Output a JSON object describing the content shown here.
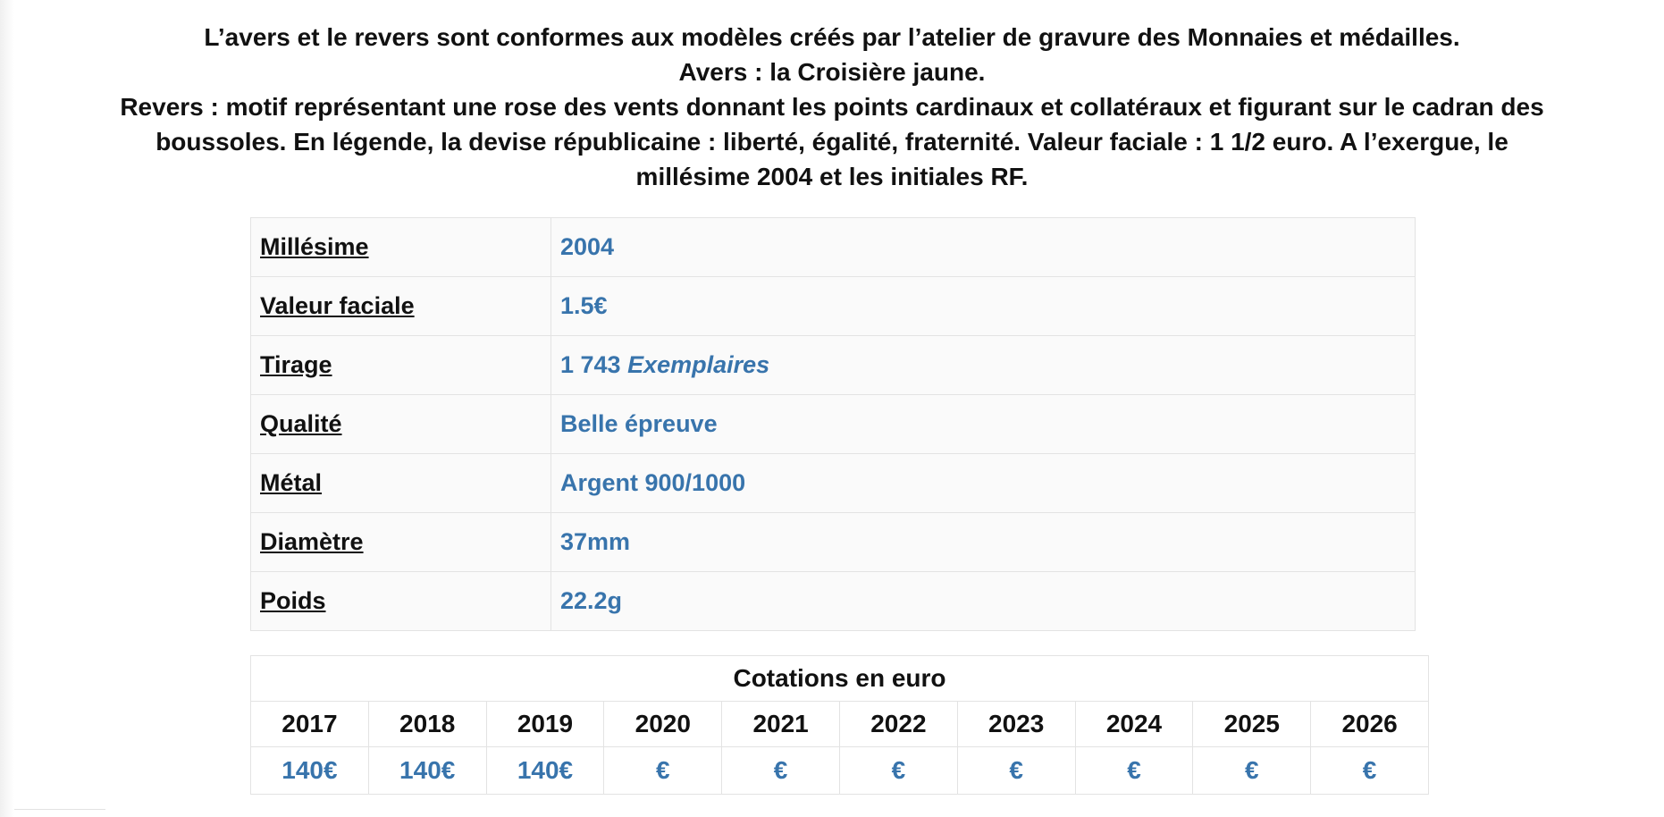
{
  "intro": {
    "lines": [
      "L’avers et le revers sont conformes aux modèles créés par l’atelier de gravure des Monnaies et médailles.",
      "Avers : la Croisière jaune.",
      "Revers : motif représentant une rose des vents donnant les points cardinaux et collatéraux et figurant sur le cadran des",
      "boussoles. En légende, la devise républicaine : liberté, égalité, fraternité. Valeur faciale : 1 1/2 euro. A l’exergue, le",
      "millésime 2004 et les initiales RF."
    ]
  },
  "specs": {
    "rows": [
      {
        "label": "Millésime",
        "value": "2004"
      },
      {
        "label": "Valeur faciale",
        "value": "1.5€"
      },
      {
        "label": "Tirage",
        "value": "1 743",
        "unit": "Exemplaires"
      },
      {
        "label": "Qualité",
        "value": "Belle épreuve"
      },
      {
        "label": "Métal",
        "value": "Argent 900/1000"
      },
      {
        "label": "Diamètre",
        "value": "37mm"
      },
      {
        "label": "Poids",
        "value": "22.2g"
      }
    ]
  },
  "quotes": {
    "title": "Cotations en euro",
    "years": [
      "2017",
      "2018",
      "2019",
      "2020",
      "2021",
      "2022",
      "2023",
      "2024",
      "2025",
      "2026"
    ],
    "prices": [
      "140€",
      "140€",
      "140€",
      "€",
      "€",
      "€",
      "€",
      "€",
      "€",
      "€"
    ]
  }
}
